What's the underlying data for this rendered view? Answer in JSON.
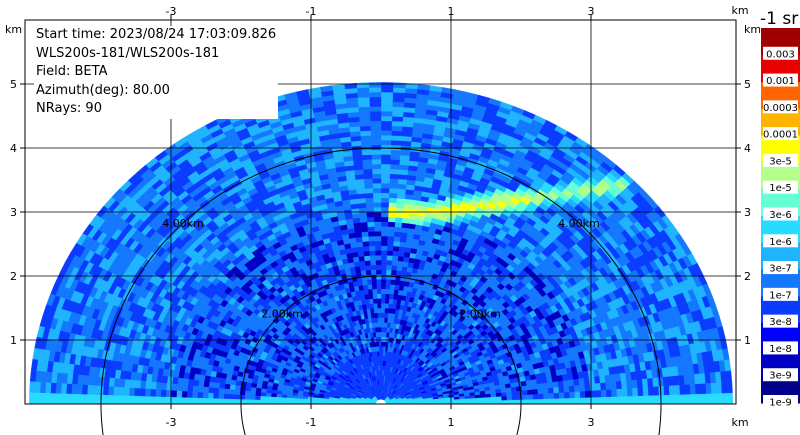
{
  "chart_data": {
    "type": "heatmap",
    "title": "",
    "info_lines": [
      "Start time: 2023/08/24 17:03:09.826",
      "WLS200s-181/WLS200s-181",
      "Field: BETA",
      "Azimuth(deg): 80.00",
      "NRays: 90"
    ],
    "x_unit": "km",
    "y_unit": "km",
    "xlim": [
      -5.5,
      5.5
    ],
    "ylim": [
      0,
      5.9
    ],
    "x_ticks": [
      -3,
      -1,
      1,
      3
    ],
    "y_ticks": [
      1,
      2,
      3,
      4,
      5
    ],
    "range_rings": [
      {
        "radius_km": 2,
        "label": "2.00km"
      },
      {
        "radius_km": 4,
        "label": "4.00km"
      }
    ],
    "max_range_km": 5.05,
    "colorbar": {
      "title": "-1 sr",
      "scale": "log",
      "labels": [
        "1e-9",
        "3e-9",
        "1e-8",
        "3e-8",
        "1e-7",
        "3e-7",
        "1e-6",
        "3e-6",
        "1e-5",
        "3e-5",
        "0.0001",
        "0.0003",
        "0.001",
        "0.003"
      ],
      "colors": [
        "#00008a",
        "#0000c4",
        "#0000ff",
        "#0a3cff",
        "#1478ff",
        "#1eb4ff",
        "#28dcff",
        "#64ffd2",
        "#b4ff8c",
        "#ffff00",
        "#ffb400",
        "#ff6400",
        "#e60000",
        "#a00000"
      ]
    },
    "field_description": "polar sector of lidar backscatter; mostly 1e-8 to 1e-7 background with a strong aerosol layer near 3 km altitude"
  }
}
